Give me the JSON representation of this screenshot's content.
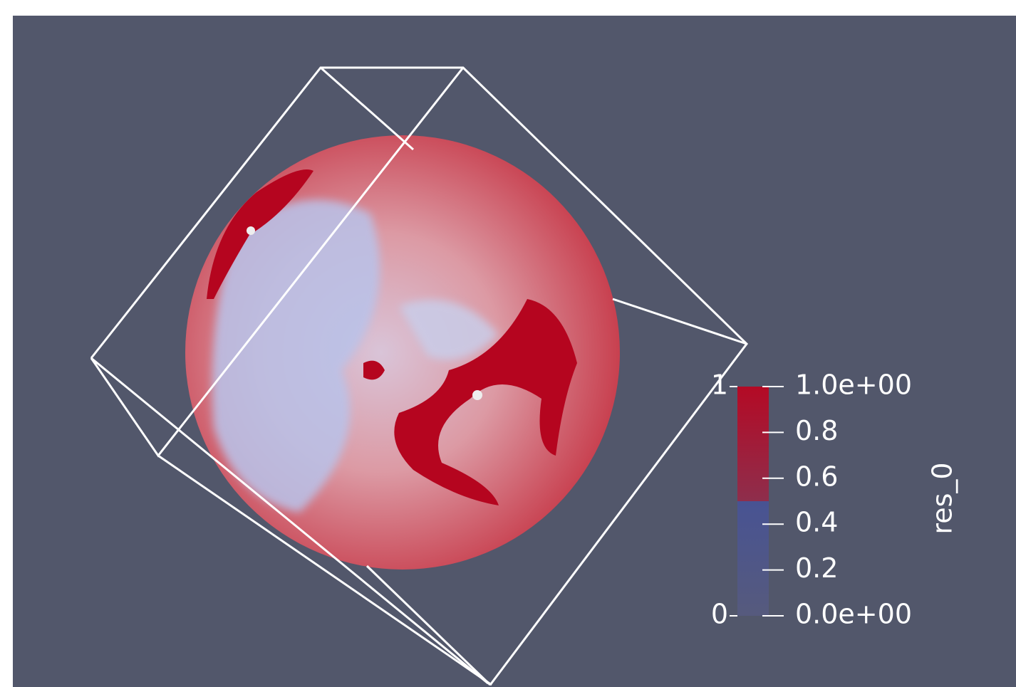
{
  "colorbar": {
    "title": "res_0",
    "range": [
      0,
      1
    ],
    "ticks": [
      {
        "value": 1,
        "label": "1.0e+00"
      },
      0.8,
      0.6,
      0.4,
      0.2,
      {
        "value": 0,
        "label": "0.0e+00"
      }
    ]
  }
}
